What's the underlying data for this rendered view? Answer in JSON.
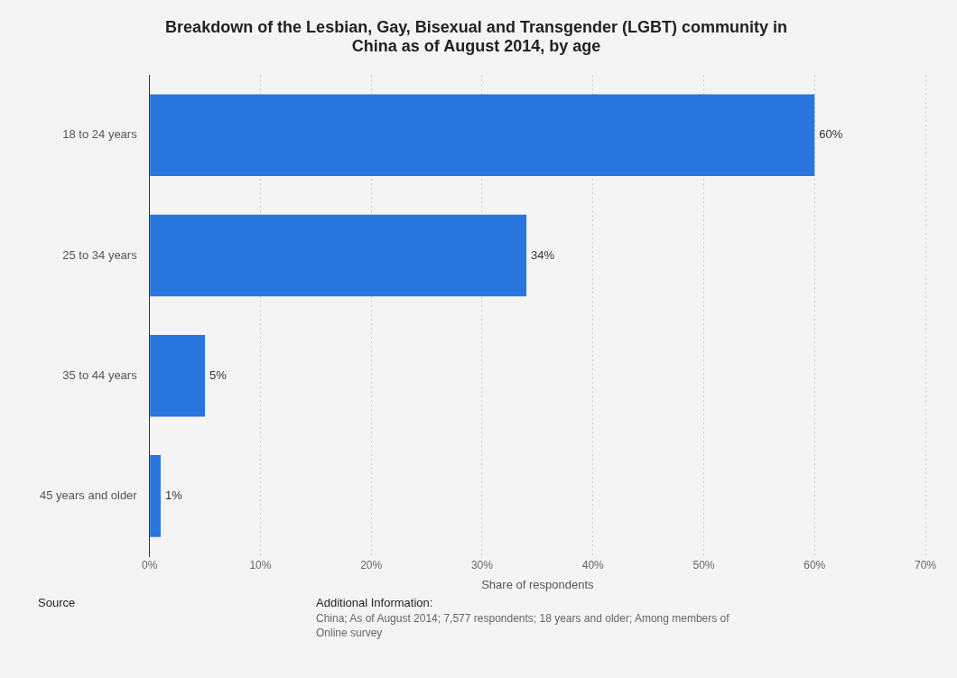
{
  "chart_data": {
    "type": "bar",
    "orientation": "horizontal",
    "title": "Breakdown of the Lesbian, Gay, Bisexual and Transgender (LGBT) community in China as of August 2014, by age",
    "categories": [
      "18 to 24 years",
      "25 to 34 years",
      "35 to 44 years",
      "45 years and older"
    ],
    "values": [
      60,
      34,
      5,
      1
    ],
    "color": "#2876dd",
    "value_labels": [
      "60%",
      "34%",
      "5%",
      "1%"
    ],
    "xlabel": "Share of respondents",
    "xlim": [
      0,
      70
    ],
    "xticks": [
      {
        "value": 0,
        "label": "0%"
      },
      {
        "value": 10,
        "label": "10%"
      },
      {
        "value": 20,
        "label": "20%"
      },
      {
        "value": 30,
        "label": "30%"
      },
      {
        "value": 40,
        "label": "40%"
      },
      {
        "value": 50,
        "label": "50%"
      },
      {
        "value": 60,
        "label": "60%"
      },
      {
        "value": 70,
        "label": "70%"
      }
    ],
    "grid": "x",
    "annotations": [
      "Source",
      "Additional Information:",
      "China; As of August 2014; 7,577 respondents; 18 years and older; Among members of",
      "Online survey"
    ]
  }
}
